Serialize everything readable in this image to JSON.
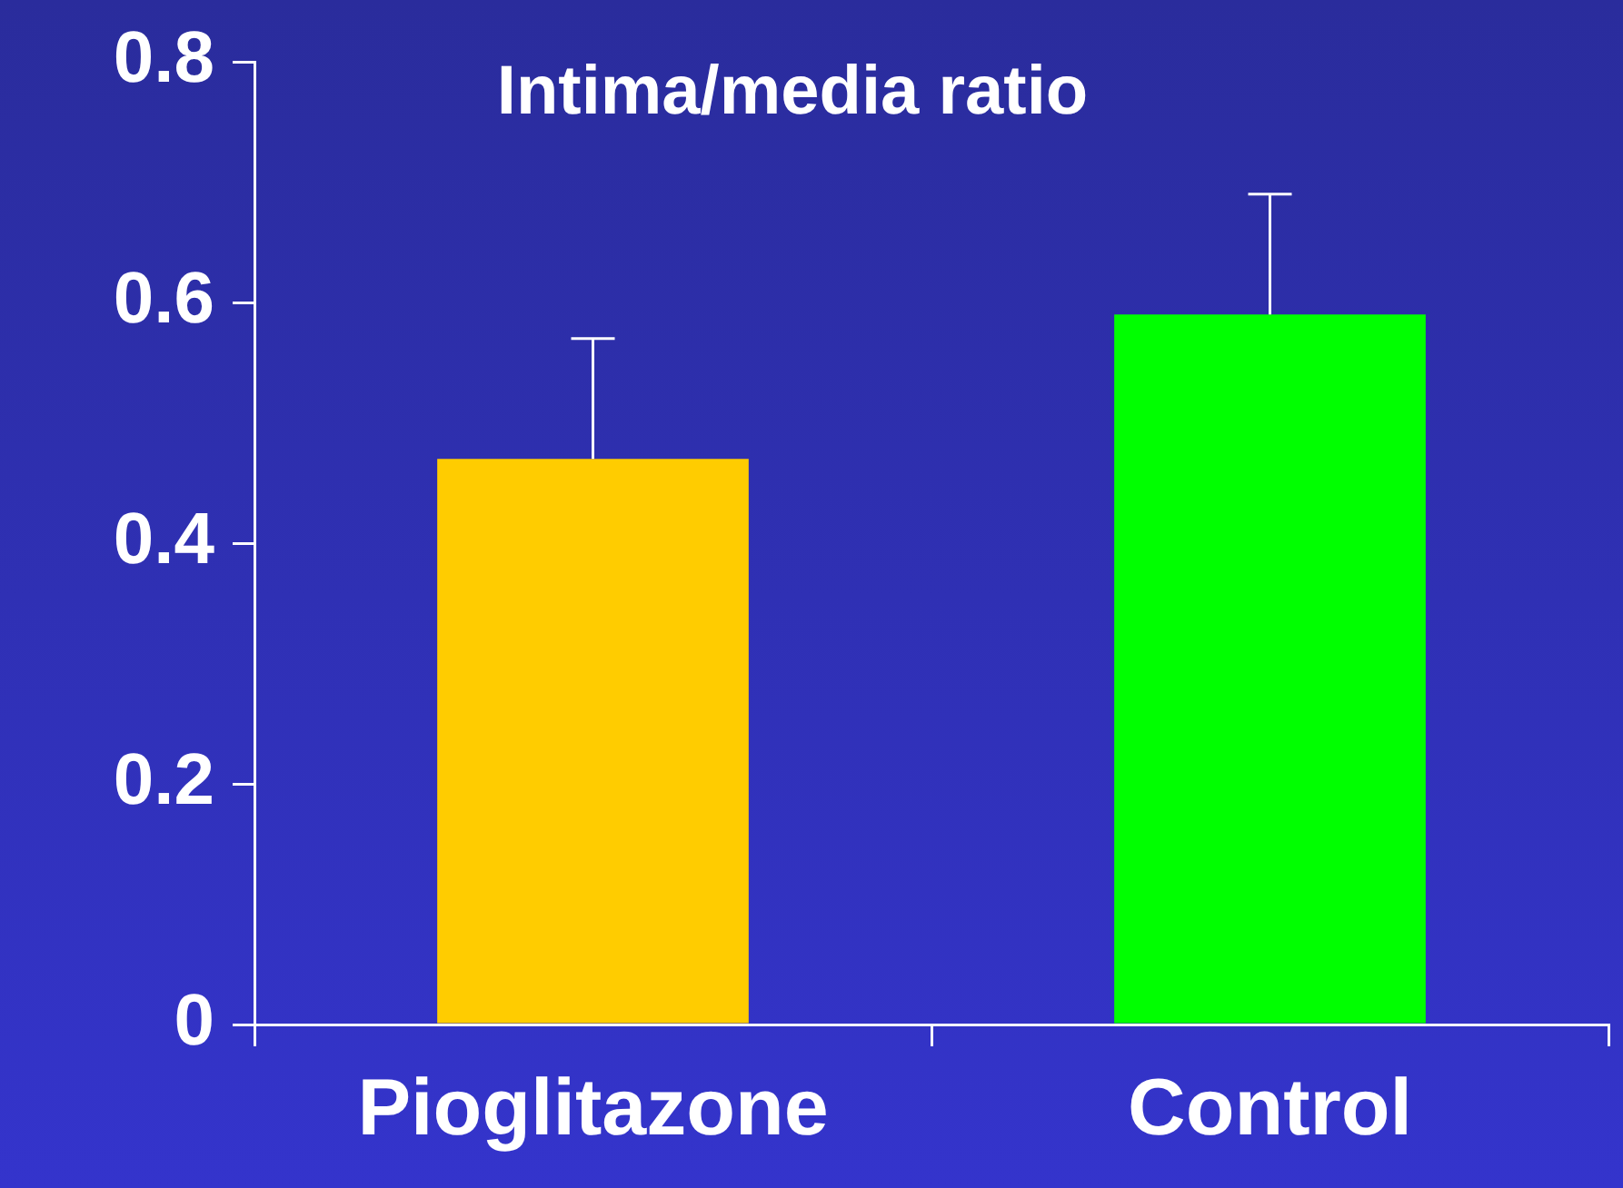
{
  "chart_data": {
    "type": "bar",
    "title": "Intima/media ratio",
    "categories": [
      "Pioglitazone",
      "Control"
    ],
    "values": [
      0.47,
      0.59
    ],
    "errors": [
      0.1,
      0.1
    ],
    "colors": [
      "#ffcc00",
      "#00ff00"
    ],
    "ylim": [
      0,
      0.8
    ],
    "yticks": [
      0,
      0.2,
      0.4,
      0.6,
      0.8
    ],
    "grid": false
  }
}
